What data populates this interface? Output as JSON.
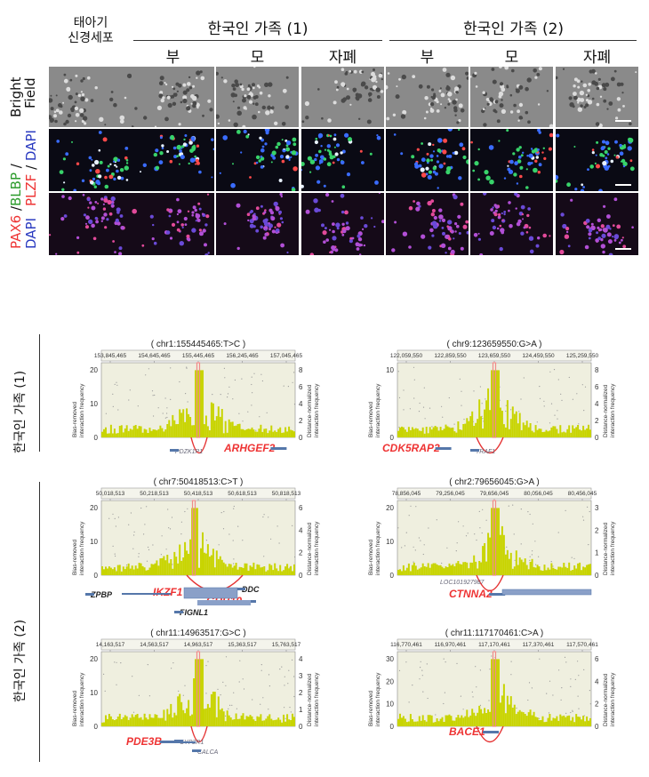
{
  "top": {
    "reference_label_line1": "태아기",
    "reference_label_line2": "신경세포",
    "family1_title": "한국인 가족 (1)",
    "family2_title": "한국인 가족 (2)",
    "columns": [
      "부",
      "모",
      "자폐",
      "부",
      "모",
      "자폐"
    ],
    "row_labels": {
      "bright_1": "Bright",
      "bright_2": "Field",
      "blbp": "BLBP",
      "plzf": "PLZF",
      "dapi": "DAPI",
      "pax6": "PAX6",
      "sep": " / "
    }
  },
  "side_labels": {
    "family1": "한국인 가족 (1)",
    "family2": "한국인 가족 (2)"
  },
  "axis_text": {
    "left": [
      "Bias-removed",
      "interaction frequency"
    ],
    "right": [
      "Distance-normalized",
      "interaction frequency"
    ]
  },
  "panels": [
    {
      "title": "( chr1:155445465:T>C )",
      "ticks": [
        "153,845,465",
        "154,645,465",
        "155,445,465",
        "156,245,465",
        "157,045,465"
      ],
      "left_ticks": [
        "0",
        "10",
        "20"
      ],
      "right_ticks": [
        "0",
        "2",
        "4",
        "6",
        "8"
      ],
      "genes": [
        {
          "name": "ARHGEF2",
          "style": "red"
        },
        {
          "name": "PDZK1P1",
          "style": "small"
        }
      ]
    },
    {
      "title": "( chr9:123659550:G>A )",
      "ticks": [
        "122,059,550",
        "122,859,550",
        "123,659,550",
        "124,459,550",
        "125,259,550"
      ],
      "left_ticks": [
        "0",
        "10"
      ],
      "right_ticks": [
        "0",
        "2",
        "4",
        "6",
        "8"
      ],
      "genes": [
        {
          "name": "CDK5RAP2",
          "style": "red"
        },
        {
          "name": "TRAF1",
          "style": "small"
        }
      ]
    },
    {
      "title": "( chr7:50418513:C>T )",
      "ticks": [
        "50,018,513",
        "50,218,513",
        "50,418,513",
        "50,618,513",
        "50,818,513"
      ],
      "left_ticks": [
        "0",
        "10",
        "20"
      ],
      "right_ticks": [
        "0",
        "2",
        "4",
        "6"
      ],
      "genes": [
        {
          "name": "IKZF1",
          "style": "red"
        },
        {
          "name": "GRB10",
          "style": "red"
        },
        {
          "name": "ZPBP",
          "style": "dark"
        },
        {
          "name": "DDC",
          "style": "dark"
        },
        {
          "name": "FIGNL1",
          "style": "dark"
        }
      ]
    },
    {
      "title": "( chr2:79656045:G>A )",
      "ticks": [
        "78,856,045",
        "79,256,045",
        "79,656,045",
        "80,056,045",
        "80,456,045"
      ],
      "left_ticks": [
        "0",
        "10",
        "20"
      ],
      "right_ticks": [
        "0",
        "1",
        "2",
        "3"
      ],
      "genes": [
        {
          "name": "CTNNA2",
          "style": "red"
        },
        {
          "name": "LOC101927987",
          "style": "small"
        }
      ]
    },
    {
      "title": "( chr11:14963517:G>C )",
      "ticks": [
        "14,163,517",
        "14,563,517",
        "14,963,517",
        "15,363,517",
        "15,763,517"
      ],
      "left_ticks": [
        "0",
        "10",
        "20"
      ],
      "right_ticks": [
        "0",
        "1",
        "2",
        "3",
        "4"
      ],
      "genes": [
        {
          "name": "PDE3B",
          "style": "red"
        },
        {
          "name": "CYP2R1",
          "style": "small"
        },
        {
          "name": "CALCA",
          "style": "small"
        }
      ]
    },
    {
      "title": "( chr11:117170461:C>A )",
      "ticks": [
        "116,770,461",
        "116,970,461",
        "117,170,461",
        "117,370,461",
        "117,570,461"
      ],
      "left_ticks": [
        "0",
        "10",
        "20",
        "30"
      ],
      "right_ticks": [
        "0",
        "2",
        "4",
        "6"
      ],
      "genes": [
        {
          "name": "BACE1",
          "style": "red"
        }
      ]
    }
  ],
  "colors": {
    "bar": "#c8d400",
    "highlight": "#f08a8a",
    "loop": "#e53333",
    "gene_track": "#5577aa",
    "plot_bg": "#efefdf"
  }
}
